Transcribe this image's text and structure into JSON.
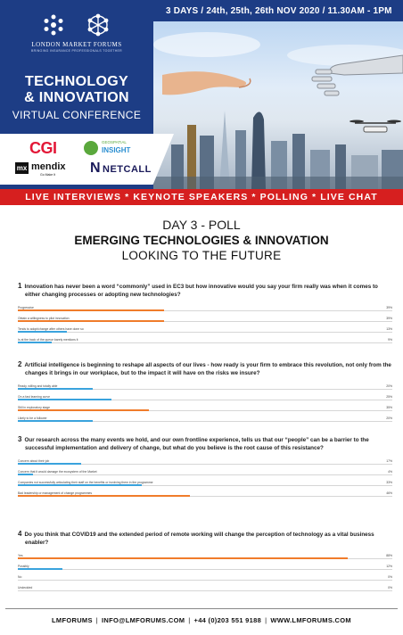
{
  "header": {
    "org_name": "LONDON MARKET FORUMS",
    "org_tagline": "BRINGING INSURANCE PROFESSIONALS TOGETHER",
    "title_line1": "TECHNOLOGY",
    "title_line2": "& INNOVATION",
    "title_line3": "VIRTUAL CONFERENCE",
    "dates": "3 DAYS / 24th, 25th, 26th NOV 2020 / 11.30AM - 1PM",
    "brand_color": "#1d3d85",
    "accent_color": "#d61f1f"
  },
  "sponsors": {
    "cgi": "CGI",
    "geo_line1": "GEOSPATIAL",
    "geo_line2": "INSIGHT",
    "mx": "mx",
    "mendix": "mendix",
    "mendix_sub": "Go Make It",
    "netcall": "NETCALL"
  },
  "banner": "LIVE INTERVIEWS * KEYNOTE SPEAKERS * POLLING * LIVE CHAT",
  "titles": {
    "day": "DAY 3 - POLL",
    "main": "EMERGING TECHNOLOGIES & INNOVATION",
    "sub": "LOOKING TO THE FUTURE"
  },
  "poll": {
    "colors": {
      "orange": "#f07c2b",
      "blue": "#3aa3dd"
    },
    "questions": [
      {
        "num": "1",
        "text": "Innovation has never been a word “commonly” used in EC3 but how innovative would you say your firm really was when it comes to either changing processes or adopting new technologies?",
        "options": [
          {
            "label": "Progressive",
            "pct": "39%",
            "value": 39,
            "color": "orange"
          },
          {
            "label": "Obtain a willingness to pilot innovation",
            "pct": "39%",
            "value": 39,
            "color": "orange"
          },
          {
            "label": "Tends to adopt/change after others have done so",
            "pct": "13%",
            "value": 13,
            "color": "blue"
          },
          {
            "label": "Is at the back of the queue barely mentions it",
            "pct": "9%",
            "value": 9,
            "color": "blue"
          }
        ]
      },
      {
        "num": "2",
        "text": "Artificial intelligence is beginning to reshape all aspects of our lives - how ready is your firm to embrace this revolution, not only from the changes it brings in our workplace, but to the impact it will have on the risks we insure?",
        "options": [
          {
            "label": "Ready, willing and totally able",
            "pct": "20%",
            "value": 20,
            "color": "blue"
          },
          {
            "label": "On a fast learning curve",
            "pct": "25%",
            "value": 25,
            "color": "blue"
          },
          {
            "label": "Still in exploratory stage",
            "pct": "35%",
            "value": 35,
            "color": "orange"
          },
          {
            "label": "Likely to be a follower",
            "pct": "20%",
            "value": 20,
            "color": "blue"
          }
        ]
      },
      {
        "num": "3",
        "text": "Our research across the many events we hold, and our own frontline experience, tells us that our “people” can be a barrier to the successful implementation and delivery of change, but what do you believe is the root cause of this resistance?",
        "options": [
          {
            "label": "Concern about their job",
            "pct": "17%",
            "value": 17,
            "color": "blue"
          },
          {
            "label": "Concern that it would damage the ecosystem of the Market",
            "pct": "4%",
            "value": 4,
            "color": "blue"
          },
          {
            "label": "Companies not successfully articulating their staff on the benefits or involving them in the programme",
            "pct": "33%",
            "value": 33,
            "color": "blue"
          },
          {
            "label": "Bad leadership or management of change programmes",
            "pct": "46%",
            "value": 46,
            "color": "orange"
          }
        ]
      },
      {
        "num": "4",
        "text": "Do you think that COVID19 and the extended period of remote working will change the perception of technology as a vital business enabler?",
        "options": [
          {
            "label": "Yes",
            "pct": "88%",
            "value": 88,
            "color": "orange"
          },
          {
            "label": "Possibly",
            "pct": "12%",
            "value": 12,
            "color": "blue"
          },
          {
            "label": "No",
            "pct": "0%",
            "value": 0,
            "color": "blue"
          },
          {
            "label": "Undecided",
            "pct": "0%",
            "value": 0,
            "color": "blue"
          }
        ]
      }
    ]
  },
  "footer": {
    "site": "LMFORUMS",
    "email": "INFO@LMFORUMS.COM",
    "phone": "+44 (0)203 551 9188",
    "web": "WWW.LMFORUMS.COM"
  }
}
